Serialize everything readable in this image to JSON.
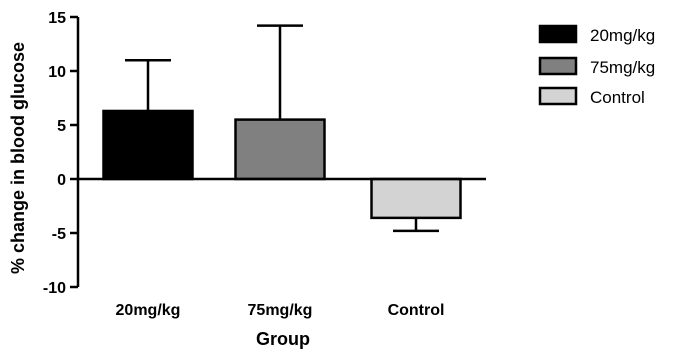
{
  "chart_data": {
    "type": "bar",
    "title": "",
    "xlabel": "Group",
    "ylabel": "% change in blood glucose",
    "categories": [
      "20mg/kg",
      "75mg/kg",
      "Control"
    ],
    "values": [
      6.3,
      5.5,
      -3.6
    ],
    "errors": [
      4.7,
      8.7,
      1.2
    ],
    "colors": [
      "#000000",
      "#808080",
      "#d3d3d3"
    ],
    "ylim": [
      -10,
      15
    ],
    "yticks": [
      -10,
      -5,
      0,
      5,
      10,
      15
    ],
    "ytick_labels": [
      "-10",
      "-5",
      "0",
      "5",
      "10",
      "15"
    ],
    "grid": false,
    "legend": {
      "position": "right",
      "entries": [
        "20mg/kg",
        "75mg/kg",
        "Control"
      ]
    }
  }
}
